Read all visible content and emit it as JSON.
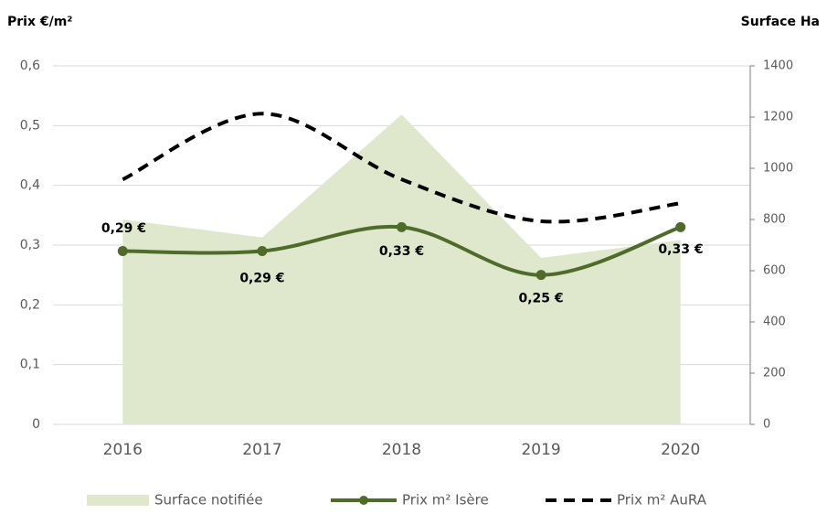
{
  "chart_data": {
    "type": "combo",
    "y_axis_label": "Prix €/m²",
    "y2_axis_label": "Surface Ha",
    "categories": [
      "2016",
      "2017",
      "2018",
      "2019",
      "2020"
    ],
    "ylim": [
      0,
      0.6
    ],
    "yticks": [
      0,
      {
        "value": 0.1,
        "label": "0,1"
      },
      {
        "value": 0.2,
        "label": "0,2"
      },
      {
        "value": 0.3,
        "label": "0,3"
      },
      {
        "value": 0.4,
        "label": "0,4"
      },
      {
        "value": 0.5,
        "label": "0,5"
      },
      {
        "value": 0.6,
        "label": "0,6"
      }
    ],
    "y2lim": [
      0,
      1400
    ],
    "y2ticks": [
      0,
      200,
      400,
      600,
      800,
      1000,
      1200,
      1400
    ],
    "grid": true,
    "legend": "bottom",
    "series": [
      {
        "name": "Surface notifiée",
        "type": "area",
        "axis": "y2",
        "color": "#dfe8cc",
        "values": [
          800,
          730,
          1210,
          650,
          720
        ]
      },
      {
        "name": "Prix m² Isère",
        "type": "line",
        "color": "#4f6b2a",
        "values": [
          0.29,
          0.29,
          0.33,
          0.25,
          0.33
        ],
        "value_labels": [
          "0,29 €",
          "0,29 €",
          "0,33 €",
          "0,25 €",
          "0,33 €"
        ]
      },
      {
        "name": "Prix m² AuRA",
        "type": "dashed",
        "color": "#000000",
        "values": [
          0.41,
          0.52,
          0.41,
          0.34,
          0.37
        ]
      }
    ]
  }
}
